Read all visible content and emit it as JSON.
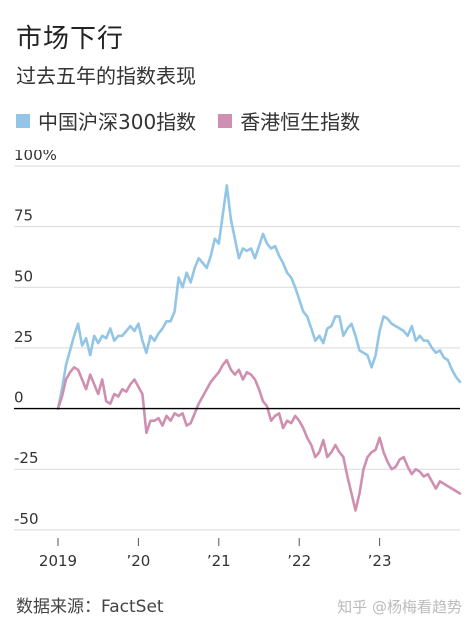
{
  "title": "市场下行",
  "subtitle": "过去五年的指数表现",
  "source": "数据来源：FactSet",
  "watermark": "知乎 @杨梅看趋势",
  "colors": {
    "csi300": "#93c5e6",
    "hsi": "#cf8fb0",
    "zero_line": "#000000",
    "grid": "#d9d9d9"
  },
  "chart_data": {
    "type": "line",
    "ylim": [
      -55,
      100
    ],
    "xlim": [
      2019.0,
      2024.0
    ],
    "y_ticks": [
      {
        "value": 100,
        "label": "100%"
      },
      {
        "value": 75,
        "label": "75"
      },
      {
        "value": 50,
        "label": "50"
      },
      {
        "value": 25,
        "label": "25"
      },
      {
        "value": 0,
        "label": "0"
      },
      {
        "value": -25,
        "label": "-25"
      },
      {
        "value": -50,
        "label": "-50"
      }
    ],
    "x_ticks": [
      {
        "value": 2019,
        "label": "2019"
      },
      {
        "value": 2020,
        "label": "’20"
      },
      {
        "value": 2021,
        "label": "’21"
      },
      {
        "value": 2022,
        "label": "’22"
      },
      {
        "value": 2023,
        "label": "’23"
      }
    ],
    "series": [
      {
        "name": "中国沪深300指数",
        "color": "#93c5e6",
        "x": [
          2019.0,
          2019.05,
          2019.1,
          2019.15,
          2019.2,
          2019.25,
          2019.3,
          2019.35,
          2019.4,
          2019.45,
          2019.5,
          2019.55,
          2019.6,
          2019.65,
          2019.7,
          2019.75,
          2019.8,
          2019.85,
          2019.9,
          2019.95,
          2020.0,
          2020.05,
          2020.1,
          2020.15,
          2020.2,
          2020.25,
          2020.3,
          2020.35,
          2020.4,
          2020.45,
          2020.5,
          2020.55,
          2020.6,
          2020.65,
          2020.7,
          2020.75,
          2020.8,
          2020.85,
          2020.9,
          2020.95,
          2021.0,
          2021.05,
          2021.1,
          2021.15,
          2021.2,
          2021.25,
          2021.3,
          2021.35,
          2021.4,
          2021.45,
          2021.5,
          2021.55,
          2021.6,
          2021.65,
          2021.7,
          2021.75,
          2021.8,
          2021.85,
          2021.9,
          2021.95,
          2022.0,
          2022.05,
          2022.1,
          2022.15,
          2022.2,
          2022.25,
          2022.3,
          2022.35,
          2022.4,
          2022.45,
          2022.5,
          2022.55,
          2022.6,
          2022.65,
          2022.7,
          2022.75,
          2022.8,
          2022.85,
          2022.9,
          2022.95,
          2023.0,
          2023.05,
          2023.1,
          2023.15,
          2023.2,
          2023.25,
          2023.3,
          2023.35,
          2023.4,
          2023.45,
          2023.5,
          2023.55,
          2023.6,
          2023.65,
          2023.7,
          2023.75,
          2023.8,
          2023.85,
          2023.9,
          2023.95,
          2024.0
        ],
        "values": [
          0,
          8,
          18,
          24,
          30,
          35,
          26,
          29,
          22,
          30,
          27,
          30,
          29,
          33,
          28,
          30,
          30,
          32,
          34,
          32,
          35,
          28,
          23,
          30,
          28,
          31,
          33,
          36,
          36,
          40,
          54,
          50,
          56,
          52,
          58,
          62,
          60,
          58,
          63,
          70,
          68,
          80,
          92,
          78,
          70,
          62,
          66,
          65,
          66,
          62,
          67,
          72,
          68,
          66,
          67,
          63,
          60,
          56,
          54,
          50,
          45,
          40,
          38,
          33,
          28,
          30,
          27,
          33,
          34,
          38,
          38,
          30,
          33,
          35,
          30,
          24,
          23,
          22,
          17,
          22,
          32,
          38,
          37,
          35,
          34,
          33,
          32,
          30,
          34,
          28,
          30,
          28,
          28,
          25,
          23,
          24,
          21,
          20,
          16,
          13,
          11
        ]
      },
      {
        "name": "香港恒生指数",
        "color": "#cf8fb0",
        "x": [
          2019.0,
          2019.05,
          2019.1,
          2019.15,
          2019.2,
          2019.25,
          2019.3,
          2019.35,
          2019.4,
          2019.45,
          2019.5,
          2019.55,
          2019.6,
          2019.65,
          2019.7,
          2019.75,
          2019.8,
          2019.85,
          2019.9,
          2019.95,
          2020.0,
          2020.05,
          2020.1,
          2020.15,
          2020.2,
          2020.25,
          2020.3,
          2020.35,
          2020.4,
          2020.45,
          2020.5,
          2020.55,
          2020.6,
          2020.65,
          2020.7,
          2020.75,
          2020.8,
          2020.85,
          2020.9,
          2020.95,
          2021.0,
          2021.05,
          2021.1,
          2021.15,
          2021.2,
          2021.25,
          2021.3,
          2021.35,
          2021.4,
          2021.45,
          2021.5,
          2021.55,
          2021.6,
          2021.65,
          2021.7,
          2021.75,
          2021.8,
          2021.85,
          2021.9,
          2021.95,
          2022.0,
          2022.05,
          2022.1,
          2022.15,
          2022.2,
          2022.25,
          2022.3,
          2022.35,
          2022.4,
          2022.45,
          2022.5,
          2022.55,
          2022.6,
          2022.65,
          2022.7,
          2022.75,
          2022.8,
          2022.85,
          2022.9,
          2022.95,
          2023.0,
          2023.05,
          2023.1,
          2023.15,
          2023.2,
          2023.25,
          2023.3,
          2023.35,
          2023.4,
          2023.45,
          2023.5,
          2023.55,
          2023.6,
          2023.65,
          2023.7,
          2023.75,
          2023.8,
          2023.85,
          2023.9,
          2023.95,
          2024.0
        ],
        "values": [
          0,
          5,
          12,
          15,
          17,
          16,
          12,
          8,
          14,
          10,
          6,
          12,
          3,
          2,
          6,
          5,
          8,
          7,
          10,
          12,
          9,
          6,
          -10,
          -5,
          -5,
          -4,
          -7,
          -3,
          -5,
          -2,
          -3,
          -2,
          -7,
          -6,
          -2,
          2,
          5,
          8,
          11,
          13,
          15,
          18,
          20,
          16,
          14,
          16,
          12,
          15,
          14,
          12,
          8,
          3,
          1,
          -5,
          -3,
          -2,
          -8,
          -5,
          -6,
          -3,
          -5,
          -8,
          -12,
          -15,
          -20,
          -18,
          -13,
          -20,
          -18,
          -15,
          -18,
          -20,
          -28,
          -35,
          -42,
          -35,
          -25,
          -20,
          -18,
          -17,
          -12,
          -18,
          -22,
          -25,
          -24,
          -21,
          -20,
          -24,
          -27,
          -25,
          -26,
          -28,
          -27,
          -30,
          -33,
          -30,
          -31,
          -32,
          -33,
          -34,
          -35
        ]
      }
    ]
  }
}
